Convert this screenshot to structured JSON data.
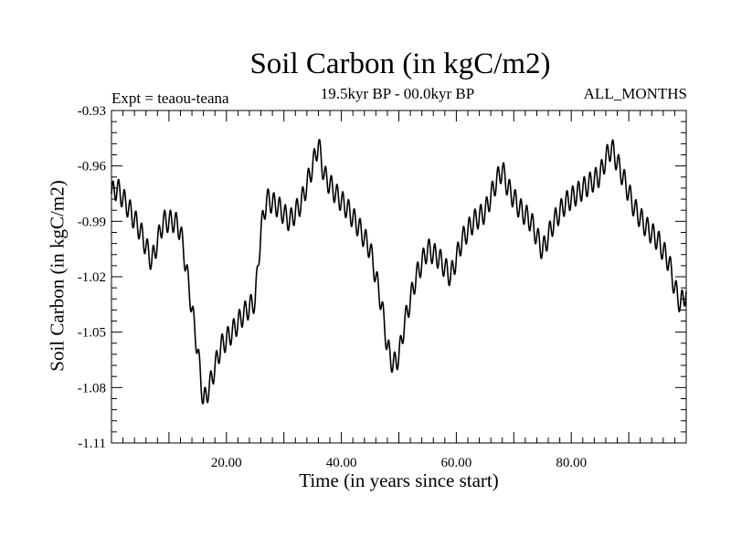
{
  "chart_data": {
    "type": "line",
    "title": "Soil Carbon (in kgC/m2)",
    "subtitle": "19.5kyr BP - 00.0kyr BP",
    "left_label": "Expt = teaou-teana",
    "right_label": "ALL_MONTHS",
    "xlabel": "Time (in years since start)",
    "ylabel": "Soil Carbon (in kgC/m2)",
    "xlim": [
      0,
      100
    ],
    "ylim": [
      -1.11,
      -0.93
    ],
    "x_ticks": [
      20,
      40,
      60,
      80
    ],
    "x_tick_labels": [
      "20.00",
      "40.00",
      "60.00",
      "80.00"
    ],
    "y_ticks": [
      -0.93,
      -0.96,
      -0.99,
      -1.02,
      -1.05,
      -1.08,
      -1.11
    ],
    "y_tick_labels": [
      "-0.93",
      "-0.96",
      "-0.99",
      "-1.02",
      "-1.05",
      "-1.08",
      "-1.11"
    ],
    "grid": false,
    "series": [
      {
        "name": "Soil Carbon",
        "color": "#000000",
        "oscillation_amplitude": 0.006,
        "oscillation_period_years": 1,
        "trend_x": [
          0,
          1,
          3,
          5,
          7,
          9,
          11,
          12,
          13,
          15,
          16,
          17,
          19,
          21,
          23,
          25,
          26,
          27,
          29,
          31,
          33,
          35,
          36,
          37,
          39,
          41,
          43,
          45,
          47,
          48,
          49,
          50,
          51,
          53,
          55,
          57,
          59,
          61,
          63,
          65,
          67,
          68,
          69,
          71,
          73,
          75,
          77,
          79,
          81,
          83,
          85,
          86,
          87,
          88,
          89,
          91,
          93,
          95,
          97,
          98,
          99,
          100
        ],
        "trend_y": [
          -0.975,
          -0.972,
          -0.983,
          -0.995,
          -1.012,
          -0.99,
          -0.99,
          -0.995,
          -1.015,
          -1.06,
          -1.088,
          -1.08,
          -1.058,
          -1.05,
          -1.04,
          -1.033,
          -0.995,
          -0.978,
          -0.982,
          -0.99,
          -0.98,
          -0.96,
          -0.948,
          -0.965,
          -0.975,
          -0.983,
          -0.993,
          -1.005,
          -1.035,
          -1.058,
          -1.068,
          -1.063,
          -1.045,
          -1.02,
          -1.005,
          -1.01,
          -1.02,
          -1.0,
          -0.99,
          -0.985,
          -0.968,
          -0.962,
          -0.972,
          -0.983,
          -0.99,
          -1.006,
          -0.99,
          -0.98,
          -0.975,
          -0.97,
          -0.965,
          -0.956,
          -0.95,
          -0.958,
          -0.966,
          -0.983,
          -0.993,
          -1.0,
          -1.012,
          -1.026,
          -1.035,
          -1.028
        ]
      }
    ]
  }
}
